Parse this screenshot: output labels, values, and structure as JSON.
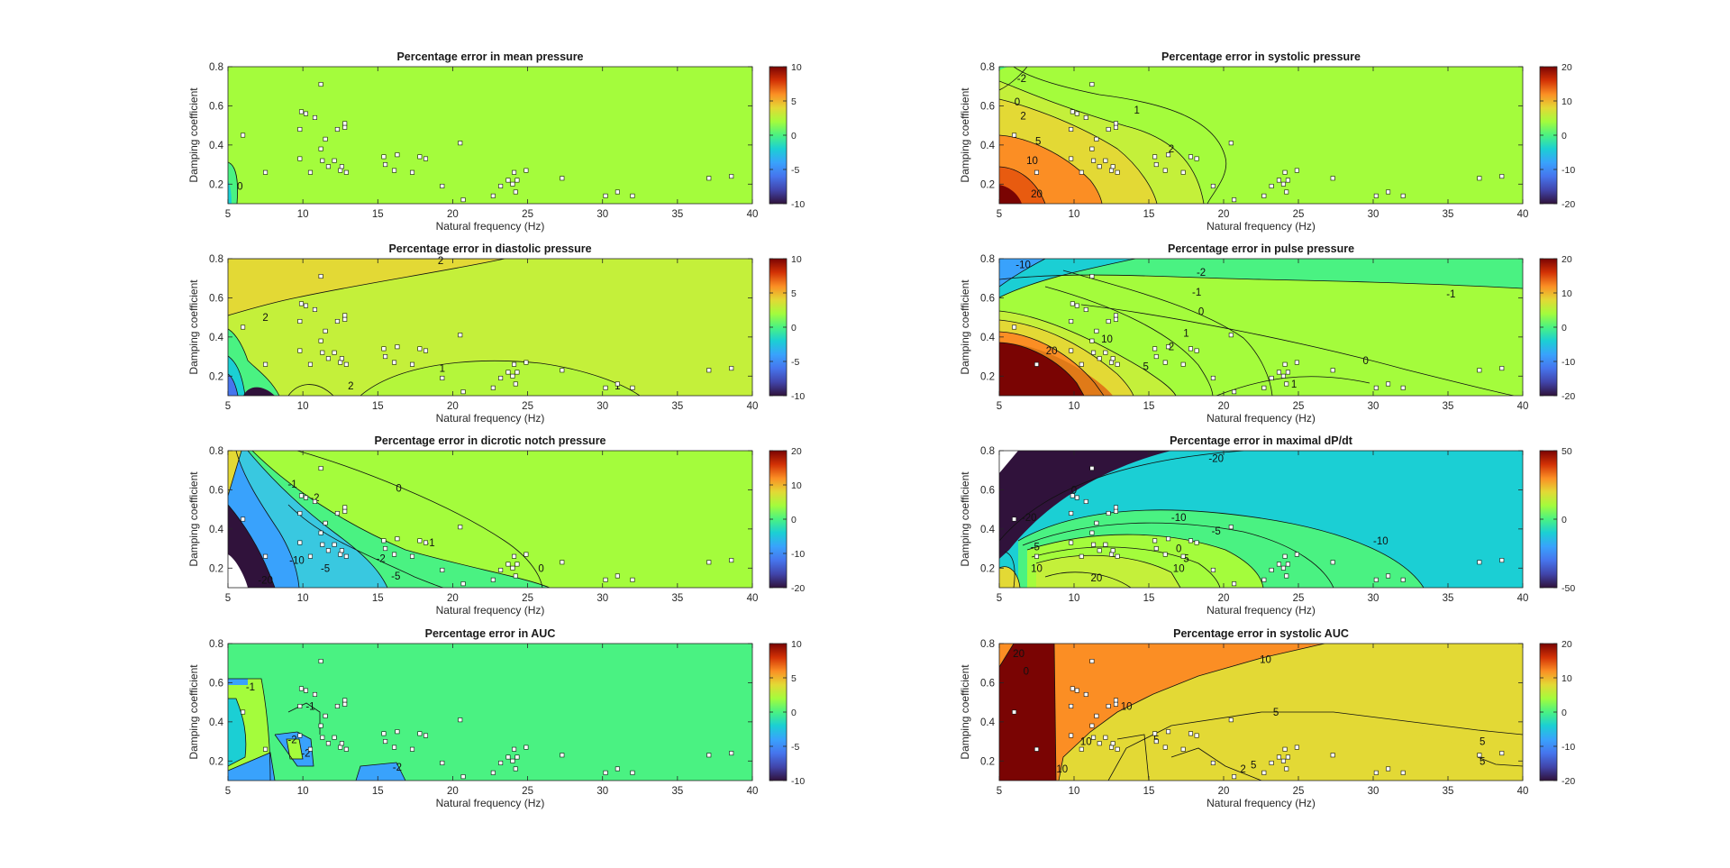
{
  "figure": {
    "scatter_points": [
      [
        6,
        0.45
      ],
      [
        7.5,
        0.26
      ],
      [
        9.8,
        0.33
      ],
      [
        9.8,
        0.48
      ],
      [
        9.9,
        0.57
      ],
      [
        10.2,
        0.56
      ],
      [
        10.5,
        0.26
      ],
      [
        10.8,
        0.54
      ],
      [
        11.2,
        0.71
      ],
      [
        11.2,
        0.38
      ],
      [
        11.3,
        0.32
      ],
      [
        11.5,
        0.43
      ],
      [
        11.7,
        0.29
      ],
      [
        12.1,
        0.32
      ],
      [
        12.3,
        0.48
      ],
      [
        12.5,
        0.27
      ],
      [
        12.6,
        0.29
      ],
      [
        12.8,
        0.51
      ],
      [
        12.8,
        0.49
      ],
      [
        12.9,
        0.26
      ],
      [
        15.4,
        0.34
      ],
      [
        15.5,
        0.3
      ],
      [
        16.1,
        0.27
      ],
      [
        16.3,
        0.35
      ],
      [
        17.3,
        0.26
      ],
      [
        17.8,
        0.34
      ],
      [
        18.2,
        0.33
      ],
      [
        19.3,
        0.19
      ],
      [
        20.5,
        0.41
      ],
      [
        20.7,
        0.12
      ],
      [
        22.7,
        0.14
      ],
      [
        23.2,
        0.19
      ],
      [
        23.7,
        0.22
      ],
      [
        24,
        0.2
      ],
      [
        24.1,
        0.26
      ],
      [
        24.2,
        0.16
      ],
      [
        24.3,
        0.22
      ],
      [
        24.9,
        0.27
      ],
      [
        27.3,
        0.23
      ],
      [
        30.2,
        0.14
      ],
      [
        31,
        0.16
      ],
      [
        32,
        0.14
      ],
      [
        37.1,
        0.23
      ],
      [
        38.6,
        0.24
      ]
    ]
  },
  "chart_data": [
    {
      "type": "heatmap",
      "title": "Percentage error in mean pressure",
      "xlabel": "Natural frequency (Hz)",
      "ylabel": "Damping coefficient",
      "xlim": [
        5,
        40
      ],
      "ylim": [
        0.1,
        0.8
      ],
      "xticks": [
        5,
        10,
        15,
        20,
        25,
        30,
        35,
        40
      ],
      "yticks": [
        0.2,
        0.4,
        0.6,
        0.8
      ],
      "colorbar": {
        "min": -10,
        "max": 10,
        "ticks": [
          10,
          5,
          0,
          -5,
          -10
        ]
      },
      "contour_labels": [
        {
          "x": 5.8,
          "y": 0.19,
          "text": "0"
        }
      ]
    },
    {
      "type": "heatmap",
      "title": "Percentage error in systolic pressure",
      "xlabel": "Natural frequency (Hz)",
      "ylabel": "Damping coefficient",
      "xlim": [
        5,
        40
      ],
      "ylim": [
        0.1,
        0.8
      ],
      "xticks": [
        5,
        10,
        15,
        20,
        25,
        30,
        35,
        40
      ],
      "yticks": [
        0.2,
        0.4,
        0.6,
        0.8
      ],
      "colorbar": {
        "min": -20,
        "max": 20,
        "ticks": [
          20,
          10,
          0,
          -10,
          -20
        ]
      },
      "contour_labels": [
        {
          "x": 6.5,
          "y": 0.74,
          "text": "-2"
        },
        {
          "x": 6.2,
          "y": 0.62,
          "text": "0"
        },
        {
          "x": 6.6,
          "y": 0.55,
          "text": "2"
        },
        {
          "x": 7.6,
          "y": 0.42,
          "text": "5"
        },
        {
          "x": 7.2,
          "y": 0.32,
          "text": "10"
        },
        {
          "x": 14.2,
          "y": 0.58,
          "text": "1"
        },
        {
          "x": 16.5,
          "y": 0.38,
          "text": "2"
        },
        {
          "x": 7.5,
          "y": 0.15,
          "text": "20"
        }
      ]
    },
    {
      "type": "heatmap",
      "title": "Percentage error in diastolic pressure",
      "xlabel": "Natural frequency (Hz)",
      "ylabel": "Damping coefficient",
      "xlim": [
        5,
        40
      ],
      "ylim": [
        0.1,
        0.8
      ],
      "xticks": [
        5,
        10,
        15,
        20,
        25,
        30,
        35,
        40
      ],
      "yticks": [
        0.2,
        0.4,
        0.6,
        0.8
      ],
      "colorbar": {
        "min": -10,
        "max": 10,
        "ticks": [
          10,
          5,
          0,
          -5,
          -10
        ]
      },
      "contour_labels": [
        {
          "x": 19.2,
          "y": 0.79,
          "text": "2"
        },
        {
          "x": 7.5,
          "y": 0.5,
          "text": "2"
        },
        {
          "x": 19.3,
          "y": 0.24,
          "text": "1"
        },
        {
          "x": 31,
          "y": 0.15,
          "text": "1"
        },
        {
          "x": 13.2,
          "y": 0.15,
          "text": "2"
        }
      ]
    },
    {
      "type": "heatmap",
      "title": "Percentage error in pulse pressure",
      "xlabel": "Natural frequency (Hz)",
      "ylabel": "Damping coefficient",
      "xlim": [
        5,
        40
      ],
      "ylim": [
        0.1,
        0.8
      ],
      "xticks": [
        5,
        10,
        15,
        20,
        25,
        30,
        35,
        40
      ],
      "yticks": [
        0.2,
        0.4,
        0.6,
        0.8
      ],
      "colorbar": {
        "min": -20,
        "max": 20,
        "ticks": [
          20,
          10,
          0,
          -10,
          -20
        ]
      },
      "contour_labels": [
        {
          "x": 6.6,
          "y": 0.77,
          "text": "-10"
        },
        {
          "x": 18.5,
          "y": 0.73,
          "text": "-2"
        },
        {
          "x": 18.2,
          "y": 0.63,
          "text": "-1"
        },
        {
          "x": 35.2,
          "y": 0.62,
          "text": "-1"
        },
        {
          "x": 18.5,
          "y": 0.53,
          "text": "0"
        },
        {
          "x": 17.5,
          "y": 0.42,
          "text": "1"
        },
        {
          "x": 16.5,
          "y": 0.35,
          "text": "2"
        },
        {
          "x": 14.8,
          "y": 0.25,
          "text": "5"
        },
        {
          "x": 12.2,
          "y": 0.39,
          "text": "10"
        },
        {
          "x": 8.5,
          "y": 0.33,
          "text": "20"
        },
        {
          "x": 29.5,
          "y": 0.28,
          "text": "0"
        },
        {
          "x": 24.7,
          "y": 0.16,
          "text": "1"
        }
      ]
    },
    {
      "type": "heatmap",
      "title": "Percentage error in dicrotic notch pressure",
      "xlabel": "Natural frequency (Hz)",
      "ylabel": "Damping coefficient",
      "xlim": [
        5,
        40
      ],
      "ylim": [
        0.1,
        0.8
      ],
      "xticks": [
        5,
        10,
        15,
        20,
        25,
        30,
        35,
        40
      ],
      "yticks": [
        0.2,
        0.4,
        0.6,
        0.8
      ],
      "colorbar": {
        "min": -20,
        "max": 20,
        "ticks": [
          20,
          10,
          0,
          -10,
          -20
        ]
      },
      "contour_labels": [
        {
          "x": 16.4,
          "y": 0.61,
          "text": "0"
        },
        {
          "x": 9.3,
          "y": 0.63,
          "text": "-1"
        },
        {
          "x": 10.8,
          "y": 0.56,
          "text": "-2"
        },
        {
          "x": 18.5,
          "y": 0.33,
          "text": "-1"
        },
        {
          "x": 15.2,
          "y": 0.25,
          "text": "-2"
        },
        {
          "x": 16.2,
          "y": 0.16,
          "text": "-5"
        },
        {
          "x": 11.5,
          "y": 0.2,
          "text": "-5"
        },
        {
          "x": 25.9,
          "y": 0.2,
          "text": "0"
        },
        {
          "x": 7.5,
          "y": 0.14,
          "text": "-20"
        },
        {
          "x": 9.6,
          "y": 0.24,
          "text": "-10"
        }
      ]
    },
    {
      "type": "heatmap",
      "title": "Percentage error in maximal dP/dt",
      "xlabel": "Natural frequency (Hz)",
      "ylabel": "Damping coefficient",
      "xlim": [
        5,
        40
      ],
      "ylim": [
        0.1,
        0.8
      ],
      "xticks": [
        5,
        10,
        15,
        20,
        25,
        30,
        35,
        40
      ],
      "yticks": [
        0.2,
        0.4,
        0.6,
        0.8
      ],
      "colorbar": {
        "min": -50,
        "max": 50,
        "ticks": [
          50,
          0,
          -50
        ]
      },
      "contour_labels": [
        {
          "x": 10,
          "y": 0.6,
          "text": "0"
        },
        {
          "x": 19.5,
          "y": 0.76,
          "text": "-20"
        },
        {
          "x": 7,
          "y": 0.46,
          "text": "-20"
        },
        {
          "x": 17,
          "y": 0.46,
          "text": "-10"
        },
        {
          "x": 19.5,
          "y": 0.39,
          "text": "-5"
        },
        {
          "x": 30.5,
          "y": 0.34,
          "text": "-10"
        },
        {
          "x": 17,
          "y": 0.3,
          "text": "0"
        },
        {
          "x": 17.5,
          "y": 0.25,
          "text": "5"
        },
        {
          "x": 17,
          "y": 0.2,
          "text": "10"
        },
        {
          "x": 11.5,
          "y": 0.15,
          "text": "20"
        },
        {
          "x": 7.4,
          "y": 0.31,
          "text": "-5"
        },
        {
          "x": 7.5,
          "y": 0.2,
          "text": "10"
        }
      ]
    },
    {
      "type": "heatmap",
      "title": "Percentage error in AUC",
      "xlabel": "Natural frequency (Hz)",
      "ylabel": "Damping coefficient",
      "xlim": [
        5,
        40
      ],
      "ylim": [
        0.1,
        0.8
      ],
      "xticks": [
        5,
        10,
        15,
        20,
        25,
        30,
        35,
        40
      ],
      "yticks": [
        0.2,
        0.4,
        0.6,
        0.8
      ],
      "colorbar": {
        "min": -10,
        "max": 10,
        "ticks": [
          10,
          5,
          0,
          -5,
          -10
        ]
      },
      "contour_labels": [
        {
          "x": 6.5,
          "y": 0.58,
          "text": "-1"
        },
        {
          "x": 10.5,
          "y": 0.48,
          "text": "-1"
        },
        {
          "x": 9.3,
          "y": 0.31,
          "text": "-2"
        },
        {
          "x": 10.2,
          "y": 0.24,
          "text": "-2"
        },
        {
          "x": 16.3,
          "y": 0.17,
          "text": "-2"
        }
      ]
    },
    {
      "type": "heatmap",
      "title": "Percentage error in systolic AUC",
      "xlabel": "Natural frequency (Hz)",
      "ylabel": "Damping coefficient",
      "xlim": [
        5,
        40
      ],
      "ylim": [
        0.1,
        0.8
      ],
      "xticks": [
        5,
        10,
        15,
        20,
        25,
        30,
        35,
        40
      ],
      "yticks": [
        0.2,
        0.4,
        0.6,
        0.8
      ],
      "colorbar": {
        "min": -20,
        "max": 20,
        "ticks": [
          20,
          10,
          0,
          -10,
          -20
        ]
      },
      "contour_labels": [
        {
          "x": 6.3,
          "y": 0.75,
          "text": "20"
        },
        {
          "x": 6.8,
          "y": 0.66,
          "text": "0"
        },
        {
          "x": 22.8,
          "y": 0.72,
          "text": "10"
        },
        {
          "x": 13.5,
          "y": 0.48,
          "text": "10"
        },
        {
          "x": 10.8,
          "y": 0.3,
          "text": "10"
        },
        {
          "x": 15.5,
          "y": 0.31,
          "text": "5"
        },
        {
          "x": 23.5,
          "y": 0.45,
          "text": "5"
        },
        {
          "x": 37.3,
          "y": 0.3,
          "text": "5"
        },
        {
          "x": 37.3,
          "y": 0.2,
          "text": "5"
        },
        {
          "x": 22,
          "y": 0.18,
          "text": "5"
        },
        {
          "x": 21.3,
          "y": 0.16,
          "text": "2"
        },
        {
          "x": 9.2,
          "y": 0.16,
          "text": "10"
        }
      ]
    }
  ]
}
